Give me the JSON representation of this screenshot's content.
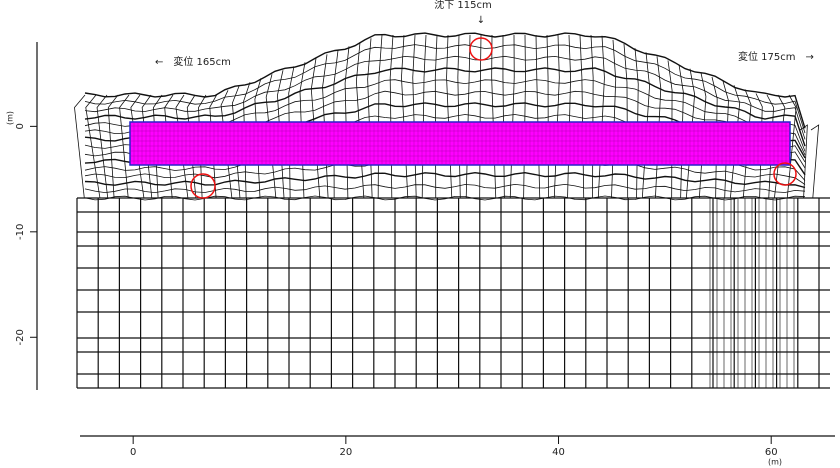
{
  "chart_data": {
    "type": "mesh",
    "annotations": [
      "沈下 115cm",
      "←　変位 165cm",
      "変位 175cm　→"
    ],
    "xlabel": "(m)",
    "ylabel": "(m)",
    "xlim": [
      -5,
      66
    ],
    "xticks": [
      0,
      20,
      40,
      60
    ],
    "ylim": [
      -25,
      8
    ],
    "yticks": [
      0,
      -10,
      -20
    ]
  }
}
